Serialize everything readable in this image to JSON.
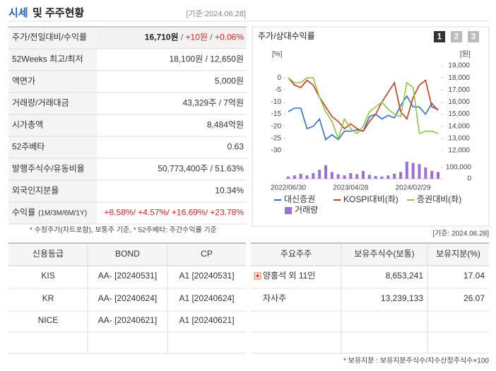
{
  "header": {
    "title": "시세",
    "title_rest": "및 주주현황",
    "date": "[기준:2024.06.28]"
  },
  "summary": {
    "rows": [
      {
        "label": "주가/전일대비/수익률",
        "value": [
          {
            "text": "16,710원",
            "color": "#222222",
            "bold": true
          },
          {
            "text": " / ",
            "color": "#666666"
          },
          {
            "text": "+10원",
            "color": "#e0201e"
          },
          {
            "text": " / ",
            "color": "#666666"
          },
          {
            "text": "+0.06%",
            "color": "#e0201e"
          }
        ]
      },
      {
        "label": "52Weeks 최고/최저",
        "value": [
          {
            "text": "18,100원 / 12,650원",
            "color": "#333333"
          }
        ]
      },
      {
        "label": "액면가",
        "value": [
          {
            "text": "5,000원",
            "color": "#333333"
          }
        ]
      },
      {
        "label": "거래량/거래대금",
        "value": [
          {
            "text": "43,329주 / 7억원",
            "color": "#333333"
          }
        ]
      },
      {
        "label": "시가총액",
        "value": [
          {
            "text": "8,484억원",
            "color": "#333333"
          }
        ]
      },
      {
        "label": "52주베타",
        "value": [
          {
            "text": "0.63",
            "color": "#333333"
          }
        ]
      },
      {
        "label": "발행주식수/유동비율",
        "value": [
          {
            "text": "50,773,400주 / 51.63%",
            "color": "#333333"
          }
        ]
      },
      {
        "label": "외국인지분율",
        "value": [
          {
            "text": "10.34%",
            "color": "#333333"
          }
        ]
      },
      {
        "label": "수익률",
        "sub": "(1M/3M/6M/1Y)",
        "value": [
          {
            "text": "+8.58%/ +4.57%/ +16.69%/ +23.78%",
            "color": "#e0201e"
          }
        ]
      }
    ]
  },
  "summary_note": "* 수정주가(차트포함), 보통주 기준, * 52주베타: 주간수익률 기준",
  "chart_data": {
    "type": "line",
    "title": "주가/상대수익률",
    "tabs": [
      "1",
      "2",
      "3"
    ],
    "y_label": "[%]",
    "y2_label": "[원]",
    "categories": [
      "2022/06/30",
      null,
      null,
      null,
      null,
      null,
      null,
      null,
      null,
      null,
      "2023/04/28",
      null,
      null,
      null,
      null,
      null,
      null,
      null,
      null,
      null,
      "2024/02/29",
      null,
      null,
      null,
      null
    ],
    "ylim": [
      -30,
      5
    ],
    "yticks": [
      0,
      -5,
      -10,
      -15,
      -20,
      -25,
      -30
    ],
    "y2lim": [
      12000,
      19000
    ],
    "y2ticks": [
      {
        "value": 19000,
        "label": "19,000"
      },
      {
        "value": 18000,
        "label": "18,000"
      },
      {
        "value": 17000,
        "label": "17,000"
      },
      {
        "value": 16000,
        "label": "16,000"
      },
      {
        "value": 15000,
        "label": "15,000"
      },
      {
        "value": 14000,
        "label": "14,000"
      },
      {
        "value": 13000,
        "label": "13,000"
      },
      {
        "value": 12000,
        "label": "12,000"
      }
    ],
    "y3lim": [
      0,
      150000
    ],
    "y3ticks": [
      {
        "value": 100000,
        "label": "100,000"
      },
      0
    ],
    "series": [
      {
        "name": "대신증권",
        "color": "#2f6fd0",
        "axis": "y2",
        "values": [
          15200,
          15500,
          15500,
          13800,
          14000,
          14600,
          12900,
          13300,
          12900,
          13600,
          13600,
          13700,
          13600,
          14800,
          15000,
          14600,
          14900,
          14700,
          15700,
          16500,
          15600,
          15600,
          15000,
          15900,
          15300
        ]
      },
      {
        "name": "KOSPI대비(좌)",
        "color": "#cc3a1b",
        "values": [
          0,
          -3,
          -4,
          -1,
          -3,
          -8,
          -12,
          -16,
          -18,
          -21,
          -19,
          -21,
          -22,
          -18,
          -15,
          -10,
          -6,
          -2,
          -14,
          -17,
          -8,
          -3,
          -1,
          -12,
          -13
        ]
      },
      {
        "name": "증권대비(좌)",
        "color": "#8ec63f",
        "values": [
          0,
          -2,
          -2,
          0,
          0,
          -8,
          -14,
          -18,
          -25,
          -17,
          -21,
          -23,
          -20,
          -14,
          -12,
          -10,
          -13,
          -15,
          -16,
          -2,
          -4,
          -23,
          -22,
          -22,
          -23
        ]
      },
      {
        "name": "거래량",
        "color": "#9b6fd8",
        "axis": "y3",
        "type": "bar",
        "values": [
          20000,
          30000,
          45000,
          30000,
          50000,
          80000,
          120000,
          60000,
          40000,
          30000,
          50000,
          40000,
          70000,
          35000,
          25000,
          20000,
          30000,
          45000,
          60000,
          150000,
          140000,
          130000,
          100000,
          70000,
          60000
        ]
      }
    ]
  },
  "chart_date": "[기준: 2024.06.28]",
  "credit": {
    "headers": [
      "신용등급",
      "BOND",
      "CP"
    ],
    "rows": [
      [
        "KIS",
        "AA-  [20240531]",
        "A1  [20240531]"
      ],
      [
        "KR",
        "AA-  [20240624]",
        "A1  [20240624]"
      ],
      [
        "NICE",
        "AA-  [20240621]",
        "A1  [20240621]"
      ]
    ]
  },
  "holders": {
    "headers": [
      "주요주주",
      "보유주식수(보통)",
      "보유지분(%)"
    ],
    "rows": [
      [
        "양홍석 외 11인",
        "8,653,241",
        "17.04"
      ],
      [
        "자사주",
        "13,239,133",
        "26.07"
      ]
    ]
  },
  "holders_note": "* 보유지분 : 보유지분주식수/지수산정주식수×100"
}
